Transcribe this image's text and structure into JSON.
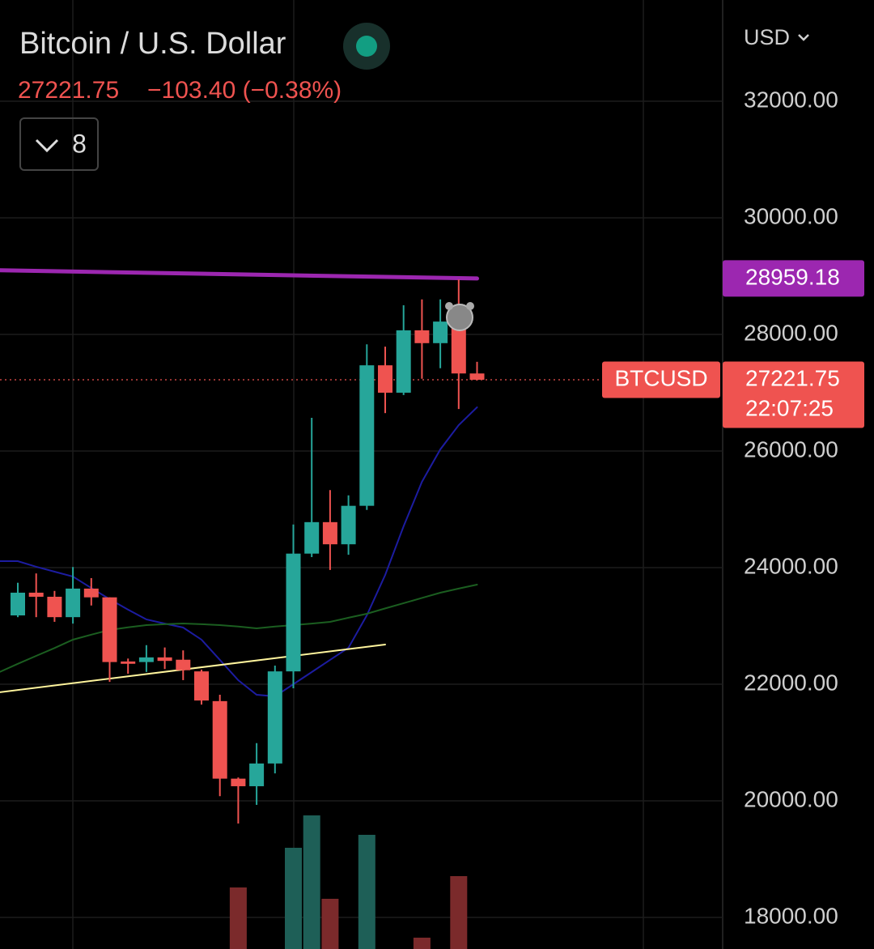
{
  "chart_data": {
    "type": "candlestick",
    "title": "Bitcoin / U.S. Dollar",
    "last_price": "27221.75",
    "change": "−103.40 (−0.38%)",
    "indicator_count": "8",
    "currency": "USD",
    "symbol": "BTCUSD",
    "countdown": "22:07:25",
    "ylim": [
      17458,
      33736
    ],
    "yticks": [
      {
        "value": 18000,
        "label": "18000.00"
      },
      {
        "value": 20000,
        "label": "20000.00"
      },
      {
        "value": 22000,
        "label": "22000.00"
      },
      {
        "value": 24000,
        "label": "24000.00"
      },
      {
        "value": 26000,
        "label": "26000.00"
      },
      {
        "value": 28000,
        "label": "28000.00"
      },
      {
        "value": 30000,
        "label": "30000.00"
      },
      {
        "value": 32000,
        "label": "32000.00"
      }
    ],
    "grid": true,
    "up_color": "#26a69a",
    "down_color": "#ef5350",
    "candles": {
      "open": [
        23180,
        23570,
        23500,
        23150,
        23640,
        23490,
        22390,
        22380,
        22460,
        22420,
        22220,
        21710,
        20380,
        20250,
        20640,
        22220,
        24240,
        24780,
        24400,
        25060,
        27470,
        27000,
        28070,
        27850,
        28220,
        27330
      ],
      "high": [
        23740,
        23900,
        23600,
        24010,
        23820,
        23490,
        22440,
        22670,
        22630,
        22580,
        22250,
        21820,
        20400,
        20990,
        22320,
        24740,
        26570,
        25330,
        25240,
        27830,
        27790,
        28500,
        28600,
        28600,
        28940,
        27530
      ],
      "low": [
        23150,
        23150,
        23070,
        23040,
        23350,
        22040,
        22180,
        22210,
        22260,
        22070,
        21650,
        20080,
        19610,
        19930,
        20470,
        21930,
        24180,
        23960,
        24220,
        24990,
        26650,
        26960,
        27240,
        27420,
        26720,
        27210
      ],
      "close": [
        23570,
        23500,
        23150,
        23640,
        23490,
        22380,
        22350,
        22460,
        22400,
        22240,
        21720,
        20380,
        20250,
        20640,
        22220,
        24240,
        24780,
        24400,
        25060,
        27470,
        27000,
        28070,
        27850,
        28220,
        27330,
        27221.75
      ]
    },
    "volume": [
      null,
      null,
      null,
      null,
      null,
      null,
      null,
      null,
      null,
      null,
      null,
      null,
      76,
      null,
      null,
      125,
      165,
      62,
      null,
      141,
      null,
      null,
      14,
      null,
      90,
      null
    ],
    "lines": [
      {
        "color": "#9c27b0",
        "width": 5,
        "x": [
          -1,
          25
        ],
        "values": [
          29100,
          28959.18
        ]
      },
      {
        "color": "#1c1ca0",
        "width": 2,
        "x": [
          -1,
          0,
          1,
          2,
          3,
          4,
          5,
          6,
          7,
          8,
          9,
          10,
          11,
          12,
          13,
          14,
          15,
          16,
          17,
          18,
          19,
          20,
          21,
          22,
          23,
          24,
          25
        ],
        "values": [
          24111,
          24111,
          24014,
          23930,
          23847,
          23650,
          23458,
          23280,
          23111,
          23040,
          22972,
          22764,
          22417,
          22069,
          21819,
          21792,
          22000,
          22208,
          22417,
          22625,
          23181,
          23875,
          24708,
          25472,
          26028,
          26444,
          26750
        ]
      },
      {
        "color": "#1b5e20",
        "width": 2,
        "x": [
          -1,
          0,
          1,
          2,
          3,
          4,
          5,
          6,
          7,
          8,
          9,
          10,
          11,
          12,
          13,
          14,
          15,
          16,
          17,
          18,
          19,
          20,
          21,
          22,
          23,
          24,
          25
        ],
        "values": [
          22208,
          22350,
          22486,
          22620,
          22764,
          22850,
          22931,
          22975,
          23014,
          23030,
          23042,
          23030,
          23014,
          22990,
          22958,
          22990,
          23014,
          23040,
          23069,
          23140,
          23208,
          23300,
          23389,
          23480,
          23569,
          23640,
          23708
        ]
      },
      {
        "color": "#fff59d",
        "width": 2,
        "x": [
          -1,
          20
        ],
        "values": [
          21861,
          22681
        ]
      }
    ],
    "price_tags": [
      {
        "value": 28959.18,
        "color": "#9c27b0"
      },
      {
        "value": 27221.75,
        "color": "#ef5350"
      }
    ]
  }
}
